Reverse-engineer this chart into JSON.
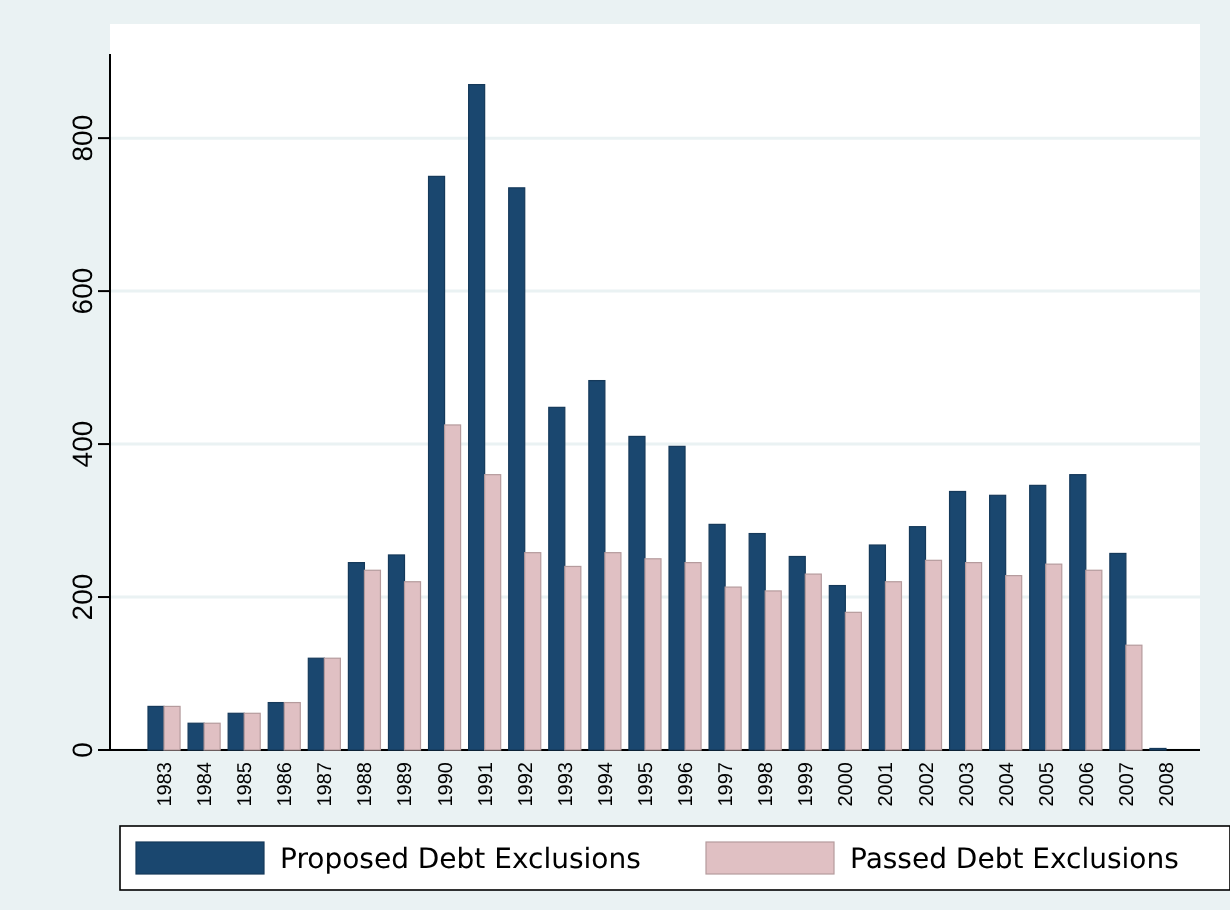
{
  "chart_data": {
    "type": "bar",
    "categories": [
      "1983",
      "1984",
      "1985",
      "1986",
      "1987",
      "1988",
      "1989",
      "1990",
      "1991",
      "1992",
      "1993",
      "1994",
      "1995",
      "1996",
      "1997",
      "1998",
      "1999",
      "2000",
      "2001",
      "2002",
      "2003",
      "2004",
      "2005",
      "2006",
      "2007",
      "2008"
    ],
    "series": [
      {
        "name": "Proposed Debt Exclusions",
        "color": "#1a476f",
        "values": [
          57,
          35,
          48,
          62,
          120,
          245,
          255,
          750,
          870,
          735,
          448,
          483,
          410,
          397,
          295,
          283,
          253,
          215,
          268,
          292,
          338,
          333,
          346,
          360,
          257,
          2
        ]
      },
      {
        "name": "Passed Debt Exclusions",
        "color": "#e0c0c3",
        "values": [
          57,
          35,
          48,
          62,
          120,
          235,
          220,
          425,
          360,
          258,
          240,
          258,
          250,
          245,
          213,
          208,
          230,
          180,
          220,
          248,
          245,
          228,
          243,
          235,
          137,
          0
        ]
      }
    ],
    "ylim": [
      0,
      910
    ],
    "yticks": [
      0,
      200,
      400,
      600,
      800
    ],
    "grid": "y",
    "legend": "bottom"
  }
}
